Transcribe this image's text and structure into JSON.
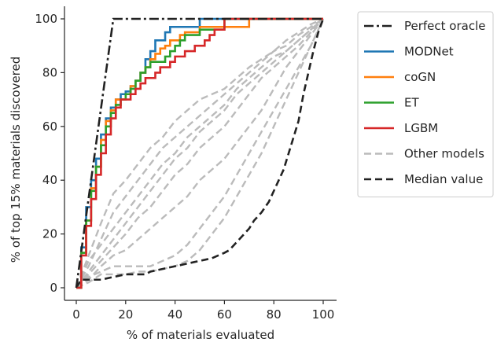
{
  "chart_data": {
    "type": "line",
    "xlabel": "% of materials evaluated",
    "ylabel": "% of top 15% materials discovered",
    "xlim": [
      -5,
      105
    ],
    "ylim": [
      -3,
      104
    ],
    "xticks": [
      0,
      20,
      40,
      60,
      80,
      100
    ],
    "yticks": [
      0,
      20,
      40,
      60,
      80,
      100
    ],
    "legend_position": "top-right, outside plot area",
    "series": [
      {
        "name": "Perfect oracle",
        "color": "#222222",
        "style": "dashdot",
        "x": [
          0,
          15,
          100
        ],
        "y": [
          0,
          100,
          100
        ]
      },
      {
        "name": "MODNet",
        "color": "#1f77b4",
        "style": "solid",
        "x": [
          0,
          2,
          4,
          6,
          8,
          10,
          12,
          14,
          16,
          18,
          20,
          22,
          24,
          26,
          28,
          30,
          32,
          34,
          36,
          38,
          40,
          42,
          44,
          46,
          48,
          50,
          100
        ],
        "y": [
          0,
          15,
          30,
          40,
          48,
          57,
          63,
          67,
          70,
          72,
          73,
          75,
          77,
          80,
          85,
          88,
          92,
          92,
          95,
          97,
          97,
          97,
          97,
          97,
          97,
          100,
          100
        ]
      },
      {
        "name": "coGN",
        "color": "#ff7f0e",
        "style": "solid",
        "x": [
          0,
          2,
          4,
          6,
          8,
          10,
          12,
          14,
          16,
          18,
          20,
          22,
          24,
          26,
          28,
          30,
          32,
          34,
          36,
          38,
          40,
          42,
          44,
          46,
          48,
          50,
          55,
          60,
          65,
          70,
          100
        ],
        "y": [
          0,
          13,
          25,
          37,
          45,
          55,
          62,
          66,
          70,
          70,
          72,
          75,
          77,
          80,
          82,
          85,
          87,
          89,
          90,
          92,
          92,
          94,
          95,
          95,
          95,
          97,
          97,
          97,
          97,
          100,
          100
        ]
      },
      {
        "name": "ET",
        "color": "#2ca02c",
        "style": "solid",
        "x": [
          0,
          2,
          4,
          6,
          8,
          10,
          12,
          14,
          16,
          18,
          20,
          22,
          24,
          26,
          28,
          30,
          32,
          34,
          36,
          38,
          40,
          42,
          44,
          46,
          48,
          50,
          55,
          60,
          100
        ],
        "y": [
          0,
          13,
          25,
          36,
          45,
          53,
          60,
          65,
          68,
          70,
          72,
          74,
          77,
          80,
          82,
          84,
          84,
          84,
          86,
          88,
          90,
          92,
          94,
          94,
          94,
          96,
          96,
          100,
          100
        ]
      },
      {
        "name": "LGBM",
        "color": "#d62728",
        "style": "solid",
        "x": [
          0,
          2,
          4,
          6,
          8,
          10,
          12,
          14,
          16,
          18,
          20,
          22,
          24,
          26,
          28,
          30,
          32,
          34,
          36,
          38,
          40,
          42,
          44,
          46,
          48,
          50,
          52,
          54,
          56,
          60,
          100
        ],
        "y": [
          0,
          12,
          23,
          33,
          42,
          50,
          57,
          63,
          67,
          70,
          70,
          72,
          74,
          76,
          78,
          78,
          80,
          82,
          82,
          84,
          86,
          86,
          88,
          88,
          90,
          90,
          92,
          94,
          96,
          100,
          100
        ]
      },
      {
        "name": "Other models",
        "color": "#bbbbbb",
        "style": "dashed",
        "x": [
          0,
          5,
          10,
          15,
          20,
          25,
          30,
          35,
          40,
          45,
          50,
          55,
          60,
          65,
          70,
          75,
          80,
          85,
          90,
          95,
          100
        ],
        "y": [
          0,
          12,
          24,
          35,
          40,
          46,
          52,
          56,
          62,
          66,
          70,
          72,
          74,
          78,
          82,
          85,
          88,
          92,
          95,
          98,
          100
        ]
      },
      {
        "name": "",
        "color": "#bbbbbb",
        "style": "dashed",
        "x": [
          0,
          5,
          10,
          15,
          20,
          25,
          30,
          35,
          40,
          45,
          50,
          55,
          60,
          65,
          70,
          75,
          80,
          85,
          90,
          95,
          100
        ],
        "y": [
          0,
          8,
          18,
          28,
          34,
          40,
          46,
          52,
          56,
          60,
          64,
          68,
          72,
          76,
          80,
          84,
          88,
          90,
          94,
          97,
          100
        ]
      },
      {
        "name": "",
        "color": "#bbbbbb",
        "style": "dashed",
        "x": [
          0,
          5,
          10,
          15,
          20,
          25,
          30,
          35,
          40,
          45,
          50,
          55,
          60,
          65,
          70,
          75,
          80,
          85,
          90,
          95,
          100
        ],
        "y": [
          0,
          10,
          16,
          22,
          28,
          34,
          40,
          46,
          50,
          56,
          60,
          64,
          68,
          74,
          78,
          82,
          86,
          88,
          92,
          96,
          100
        ]
      },
      {
        "name": "",
        "color": "#bbbbbb",
        "style": "dashed",
        "x": [
          0,
          5,
          10,
          15,
          20,
          25,
          30,
          35,
          40,
          45,
          50,
          55,
          60,
          65,
          70,
          75,
          80,
          85,
          90,
          95,
          100
        ],
        "y": [
          0,
          6,
          12,
          18,
          24,
          30,
          36,
          42,
          48,
          52,
          58,
          62,
          66,
          72,
          76,
          80,
          84,
          88,
          92,
          96,
          100
        ]
      },
      {
        "name": "",
        "color": "#bbbbbb",
        "style": "dashed",
        "x": [
          0,
          5,
          10,
          15,
          20,
          25,
          30,
          35,
          40,
          45,
          50,
          55,
          60,
          65,
          70,
          75,
          80,
          85,
          90,
          95,
          100
        ],
        "y": [
          0,
          5,
          10,
          15,
          20,
          26,
          30,
          36,
          42,
          46,
          52,
          56,
          60,
          66,
          72,
          78,
          82,
          86,
          90,
          95,
          100
        ]
      },
      {
        "name": "",
        "color": "#bbbbbb",
        "style": "dashed",
        "x": [
          0,
          5,
          10,
          15,
          20,
          25,
          30,
          35,
          40,
          45,
          50,
          55,
          60,
          65,
          70,
          75,
          80,
          85,
          90,
          95,
          100
        ],
        "y": [
          0,
          4,
          6,
          8,
          8,
          8,
          8,
          10,
          12,
          16,
          22,
          28,
          34,
          42,
          50,
          58,
          66,
          74,
          82,
          90,
          100
        ]
      },
      {
        "name": "",
        "color": "#bbbbbb",
        "style": "dashed",
        "x": [
          0,
          5,
          10,
          15,
          20,
          25,
          30,
          35,
          40,
          45,
          50,
          55,
          60,
          65,
          70,
          75,
          80,
          85,
          90,
          95,
          100
        ],
        "y": [
          0,
          2,
          5,
          5,
          5,
          6,
          6,
          7,
          8,
          10,
          14,
          20,
          26,
          34,
          42,
          50,
          60,
          70,
          80,
          90,
          100
        ]
      },
      {
        "name": "",
        "color": "#bbbbbb",
        "style": "dashed",
        "x": [
          0,
          5,
          10,
          15,
          20,
          25,
          30,
          35,
          40,
          45,
          50,
          55,
          60,
          65,
          70,
          75,
          80,
          85,
          90,
          95,
          100
        ],
        "y": [
          0,
          3,
          8,
          12,
          14,
          18,
          22,
          26,
          30,
          34,
          40,
          44,
          48,
          54,
          60,
          66,
          74,
          82,
          88,
          94,
          100
        ]
      },
      {
        "name": "Median value",
        "color": "#222222",
        "style": "dashed",
        "x": [
          0,
          2,
          10,
          20,
          28,
          30,
          40,
          50,
          55,
          60,
          62,
          65,
          68,
          70,
          72,
          75,
          78,
          80,
          82,
          84,
          86,
          88,
          90,
          92,
          94,
          96,
          98,
          100
        ],
        "y": [
          0,
          3,
          3,
          5,
          5,
          6,
          8,
          10,
          11,
          13,
          14,
          17,
          20,
          22,
          25,
          28,
          32,
          36,
          40,
          44,
          50,
          56,
          62,
          72,
          80,
          88,
          95,
          100
        ]
      }
    ]
  }
}
